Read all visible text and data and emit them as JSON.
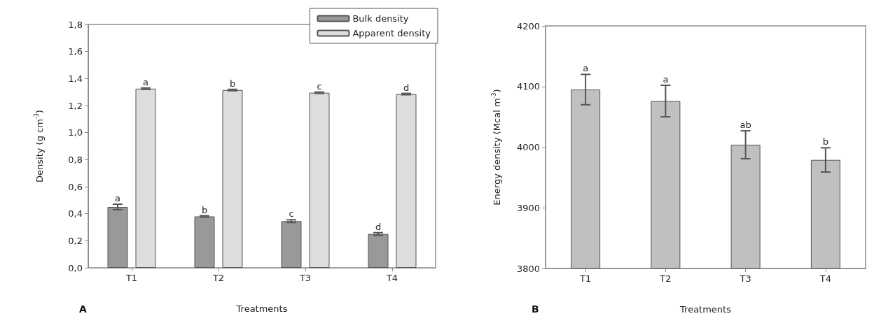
{
  "chart_data": [
    {
      "type": "bar",
      "title": "A",
      "xlabel": "Treatments",
      "ylabel": "Density (g cm$^{-3}$)",
      "categories": [
        "T1",
        "T2",
        "T3",
        "T4"
      ],
      "series": [
        {
          "name": "Bulk density",
          "color": "#999999",
          "values": [
            0.45,
            0.38,
            0.345,
            0.25
          ],
          "errors": [
            0.02,
            0.005,
            0.01,
            0.01
          ],
          "value_labels": [
            "a",
            "b",
            "c",
            "d"
          ]
        },
        {
          "name": "Apparent density",
          "color": "#dddddd",
          "values": [
            1.325,
            1.315,
            1.295,
            1.285
          ],
          "errors": [
            0.005,
            0.005,
            0.005,
            0.005
          ],
          "value_labels": [
            "a",
            "b",
            "c",
            "d"
          ]
        }
      ],
      "ylim": [
        0,
        1.8
      ],
      "yticks": [
        {
          "value": 0,
          "label": "0,0"
        },
        {
          "value": 0.2,
          "label": "0,2"
        },
        {
          "value": 0.4,
          "label": "0,4"
        },
        {
          "value": 0.6,
          "label": "0,6"
        },
        {
          "value": 0.8,
          "label": "0,8"
        },
        {
          "value": 1,
          "label": "1,0"
        },
        {
          "value": 1.2,
          "label": "1,2"
        },
        {
          "value": 1.4,
          "label": "1,4"
        },
        {
          "value": 1.6,
          "label": "1,6"
        },
        {
          "value": 1.8,
          "label": "1,8"
        }
      ],
      "grid": false,
      "legend": "top right"
    },
    {
      "type": "bar",
      "title": "B",
      "xlabel": "Treatments",
      "ylabel": "Energy density (Mcal m$^{-3}$)",
      "categories": [
        "T1",
        "T2",
        "T3",
        "T4"
      ],
      "series": [
        {
          "color": "#c0c0c0",
          "values": [
            4095,
            4076,
            4004,
            3979
          ],
          "errors": [
            25,
            26,
            23,
            20
          ],
          "value_labels": [
            "a",
            "a",
            "ab",
            "b"
          ]
        }
      ],
      "ylim": [
        3800,
        4200
      ],
      "yticks": [
        3800,
        3900,
        4000,
        4100,
        4200
      ],
      "grid": false,
      "legend": false
    }
  ]
}
